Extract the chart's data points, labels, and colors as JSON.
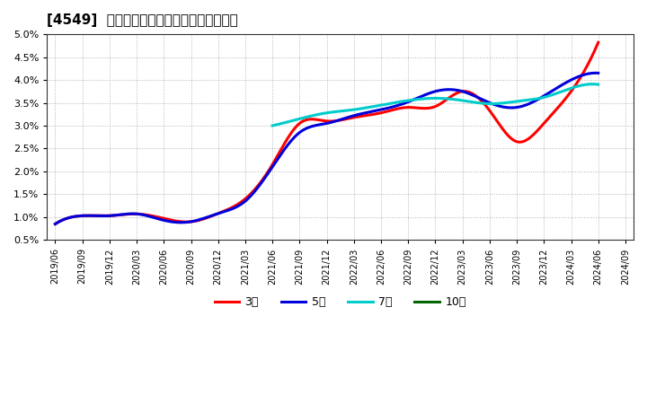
{
  "title": "[4549]  経常利益マージンの標準偏差の推移",
  "background_color": "#ffffff",
  "plot_background": "#ffffff",
  "ylim": [
    0.005,
    0.05
  ],
  "yticks": [
    0.005,
    0.01,
    0.015,
    0.02,
    0.025,
    0.03,
    0.035,
    0.04,
    0.045,
    0.05
  ],
  "ytick_labels": [
    "0.5%",
    "1.0%",
    "1.5%",
    "2.0%",
    "2.5%",
    "3.0%",
    "3.5%",
    "4.0%",
    "4.5%",
    "5.0%"
  ],
  "xtick_labels": [
    "2019/06",
    "2019/09",
    "2019/12",
    "2020/03",
    "2020/06",
    "2020/09",
    "2020/12",
    "2021/03",
    "2021/06",
    "2021/09",
    "2021/12",
    "2022/03",
    "2022/06",
    "2022/09",
    "2022/12",
    "2023/03",
    "2023/06",
    "2023/09",
    "2023/12",
    "2024/03",
    "2024/06",
    "2024/09"
  ],
  "series": {
    "3year": {
      "color": "#ff0000",
      "label": "3年",
      "x": [
        0,
        1,
        2,
        3,
        4,
        5,
        6,
        7,
        8,
        9,
        10,
        11,
        12,
        13,
        14,
        15,
        16,
        17,
        18,
        19,
        20
      ],
      "y": [
        0.0085,
        0.0103,
        0.0103,
        0.0107,
        0.0097,
        0.009,
        0.0108,
        0.014,
        0.0215,
        0.0305,
        0.031,
        0.0318,
        0.0328,
        0.034,
        0.0342,
        0.0375,
        0.0333,
        0.0265,
        0.0305,
        0.0375,
        0.0482
      ]
    },
    "5year": {
      "color": "#0000dd",
      "label": "5年",
      "x": [
        0,
        1,
        2,
        3,
        4,
        5,
        6,
        7,
        8,
        9,
        10,
        11,
        12,
        13,
        14,
        15,
        16,
        17,
        18,
        19,
        20
      ],
      "y": [
        0.0085,
        0.0103,
        0.0103,
        0.0107,
        0.0093,
        0.009,
        0.0108,
        0.0135,
        0.021,
        0.0285,
        0.0305,
        0.0322,
        0.0335,
        0.0352,
        0.0375,
        0.0375,
        0.035,
        0.034,
        0.0365,
        0.04,
        0.0415
      ]
    },
    "7year": {
      "color": "#00cccc",
      "label": "7年",
      "x": [
        8,
        9,
        10,
        11,
        12,
        13,
        14,
        15,
        16,
        17,
        18,
        19,
        20
      ],
      "y": [
        0.03,
        0.0315,
        0.0328,
        0.0335,
        0.0345,
        0.0355,
        0.036,
        0.0355,
        0.0348,
        0.0353,
        0.0362,
        0.0382,
        0.039
      ]
    },
    "10year": {
      "color": "#006600",
      "label": "10年",
      "x": [],
      "y": []
    }
  }
}
